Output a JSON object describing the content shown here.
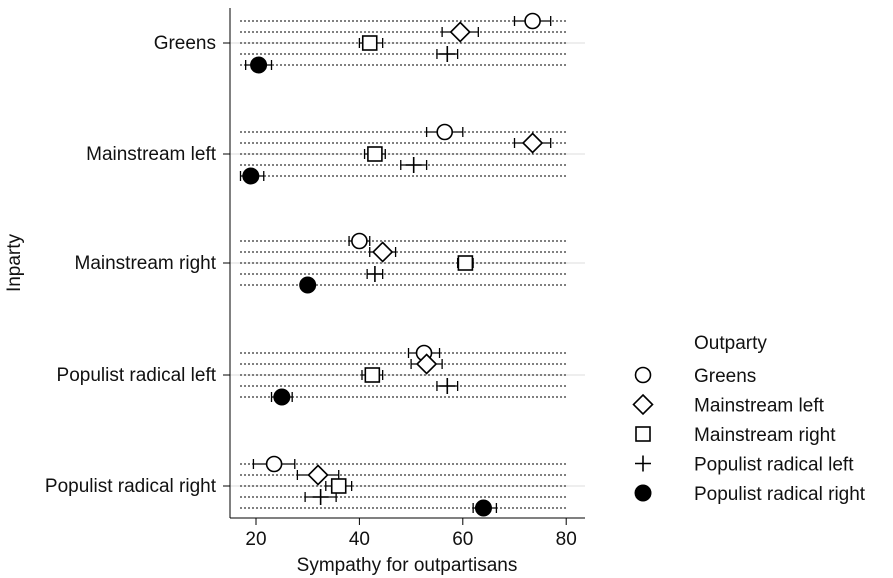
{
  "chart_data": {
    "type": "scatter",
    "title": "",
    "xlabel": "Sympathy for outpartisans",
    "ylabel": "Inparty",
    "xlim": [
      15,
      80
    ],
    "xticks": [
      20,
      40,
      60,
      80
    ],
    "grid": "horizontal dotted per row",
    "legend_placement": "right",
    "legend_title": "Outparty",
    "categories": [
      "Greens",
      "Mainstream left",
      "Mainstream right",
      "Populist radical left",
      "Populist radical right"
    ],
    "series": [
      {
        "name": "Greens",
        "marker": "circle-open",
        "values": [
          73.5,
          56.5,
          40.0,
          52.5,
          23.5
        ],
        "ci_low": [
          70.0,
          53.0,
          38.0,
          49.5,
          19.5
        ],
        "ci_high": [
          77.0,
          60.0,
          42.0,
          55.5,
          27.5
        ]
      },
      {
        "name": "Mainstream left",
        "marker": "diamond-open",
        "values": [
          59.5,
          73.5,
          44.5,
          53.0,
          32.0
        ],
        "ci_low": [
          56.0,
          70.0,
          42.0,
          50.0,
          28.0
        ],
        "ci_high": [
          63.0,
          77.0,
          47.0,
          56.0,
          36.0
        ]
      },
      {
        "name": "Mainstream right",
        "marker": "square-open",
        "values": [
          42.0,
          43.0,
          60.5,
          42.5,
          36.0
        ],
        "ci_low": [
          40.0,
          41.0,
          59.0,
          40.5,
          33.5
        ],
        "ci_high": [
          44.5,
          45.0,
          62.0,
          44.5,
          38.5
        ]
      },
      {
        "name": "Populist radical left",
        "marker": "plus",
        "values": [
          57.0,
          50.5,
          43.0,
          57.0,
          32.5
        ],
        "ci_low": [
          55.0,
          48.0,
          41.5,
          55.0,
          29.5
        ],
        "ci_high": [
          59.0,
          53.0,
          44.5,
          59.0,
          35.5
        ]
      },
      {
        "name": "Populist radical right",
        "marker": "circle-filled",
        "values": [
          20.5,
          19.0,
          30.0,
          25.0,
          64.0
        ],
        "ci_low": [
          18.0,
          17.0,
          29.0,
          23.0,
          62.0
        ],
        "ci_high": [
          23.0,
          21.5,
          31.0,
          27.0,
          66.5
        ]
      }
    ]
  }
}
